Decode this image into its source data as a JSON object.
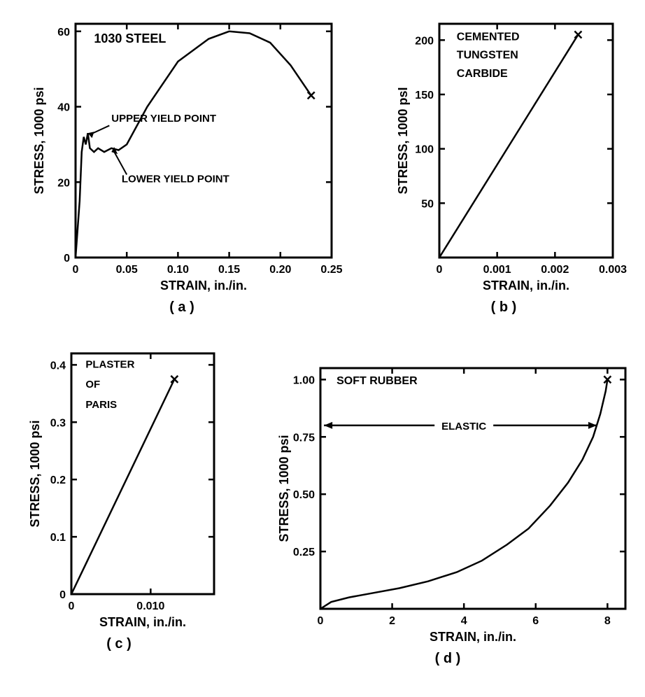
{
  "global": {
    "line_color": "#000000",
    "background_color": "#ffffff",
    "axis_stroke_width": 3,
    "curve_stroke_width": 2.5,
    "tick_font_size": 16,
    "label_font_size": 18,
    "title_font_size": 18
  },
  "chart_a": {
    "type": "line",
    "material_label": "1030 STEEL",
    "xlabel": "STRAIN, in./in.",
    "ylabel": "STRESS, 1000 psi",
    "xlim": [
      0,
      0.25
    ],
    "ylim": [
      0,
      62
    ],
    "xticks": [
      0,
      0.05,
      0.1,
      0.15,
      0.2,
      0.25
    ],
    "xtick_labels": [
      "0",
      "0.05",
      "0.10",
      "0.15",
      "0.20",
      "0.25"
    ],
    "yticks": [
      0,
      20,
      40,
      60
    ],
    "ytick_labels": [
      "0",
      "20",
      "40",
      "60"
    ],
    "upper_yield_label": "UPPER YIELD POINT",
    "lower_yield_label": "LOWER YIELD POINT",
    "sublabel": "( a )",
    "curve": [
      [
        0,
        0
      ],
      [
        0.004,
        15
      ],
      [
        0.006,
        28
      ],
      [
        0.008,
        32
      ],
      [
        0.01,
        30
      ],
      [
        0.012,
        33
      ],
      [
        0.014,
        29
      ],
      [
        0.018,
        28
      ],
      [
        0.022,
        29
      ],
      [
        0.028,
        28
      ],
      [
        0.035,
        29
      ],
      [
        0.042,
        28.5
      ],
      [
        0.05,
        30
      ],
      [
        0.07,
        40
      ],
      [
        0.1,
        52
      ],
      [
        0.13,
        58
      ],
      [
        0.15,
        60
      ],
      [
        0.17,
        59.5
      ],
      [
        0.19,
        57
      ],
      [
        0.21,
        51
      ],
      [
        0.225,
        45
      ],
      [
        0.23,
        43
      ]
    ],
    "fracture_point": [
      0.23,
      43
    ]
  },
  "chart_b": {
    "type": "line",
    "material_label": "CEMENTED TUNGSTEN CARBIDE",
    "xlabel": "STRAIN, in./in.",
    "ylabel": "STRESS, 1000 psI",
    "xlim": [
      0,
      0.003
    ],
    "ylim": [
      0,
      215
    ],
    "xticks": [
      0,
      0.001,
      0.002,
      0.003
    ],
    "xtick_labels": [
      "0",
      "0.001",
      "0.002",
      "0.003"
    ],
    "yticks": [
      50,
      100,
      150,
      200
    ],
    "ytick_labels": [
      "50",
      "100",
      "150",
      "200"
    ],
    "sublabel": "( b )",
    "curve": [
      [
        0,
        0
      ],
      [
        0.0024,
        205
      ]
    ],
    "fracture_point": [
      0.0024,
      205
    ]
  },
  "chart_c": {
    "type": "line",
    "material_label": "PLASTER OF PARIS",
    "xlabel": "STRAIN, in./in.",
    "ylabel": "STRESS, 1000 psi",
    "xlim": [
      0,
      0.018
    ],
    "ylim": [
      0,
      0.42
    ],
    "xticks": [
      0,
      0.01
    ],
    "xtick_labels": [
      "0",
      "0.010"
    ],
    "yticks": [
      0,
      0.1,
      0.2,
      0.3,
      0.4
    ],
    "ytick_labels": [
      "0",
      "0.1",
      "0.2",
      "0.3",
      "0.4"
    ],
    "sublabel": "( c )",
    "curve": [
      [
        0,
        0
      ],
      [
        0.013,
        0.375
      ]
    ],
    "fracture_point": [
      0.013,
      0.375
    ]
  },
  "chart_d": {
    "type": "line",
    "material_label": "SOFT RUBBER",
    "elastic_label": "ELASTIC",
    "xlabel": "STRAIN, in./in.",
    "ylabel": "STRESS, 1000 psi",
    "xlim": [
      0,
      8.5
    ],
    "ylim": [
      0,
      1.05
    ],
    "xticks": [
      0,
      2,
      4,
      6,
      8
    ],
    "xtick_labels": [
      "0",
      "2",
      "4",
      "6",
      "8"
    ],
    "yticks": [
      0.25,
      0.5,
      0.75,
      1.0
    ],
    "ytick_labels": [
      "0.25",
      "0.50",
      "0.75",
      "1.00"
    ],
    "sublabel": "( d )",
    "curve": [
      [
        0,
        0
      ],
      [
        0.3,
        0.03
      ],
      [
        0.8,
        0.05
      ],
      [
        1.5,
        0.07
      ],
      [
        2.2,
        0.09
      ],
      [
        3.0,
        0.12
      ],
      [
        3.8,
        0.16
      ],
      [
        4.5,
        0.21
      ],
      [
        5.2,
        0.28
      ],
      [
        5.8,
        0.35
      ],
      [
        6.4,
        0.45
      ],
      [
        6.9,
        0.55
      ],
      [
        7.3,
        0.65
      ],
      [
        7.6,
        0.75
      ],
      [
        7.8,
        0.85
      ],
      [
        7.95,
        0.95
      ],
      [
        8.0,
        1.0
      ]
    ],
    "fracture_point": [
      8.0,
      1.0
    ],
    "elastic_y": 0.8,
    "elastic_x_end": 7.7
  }
}
